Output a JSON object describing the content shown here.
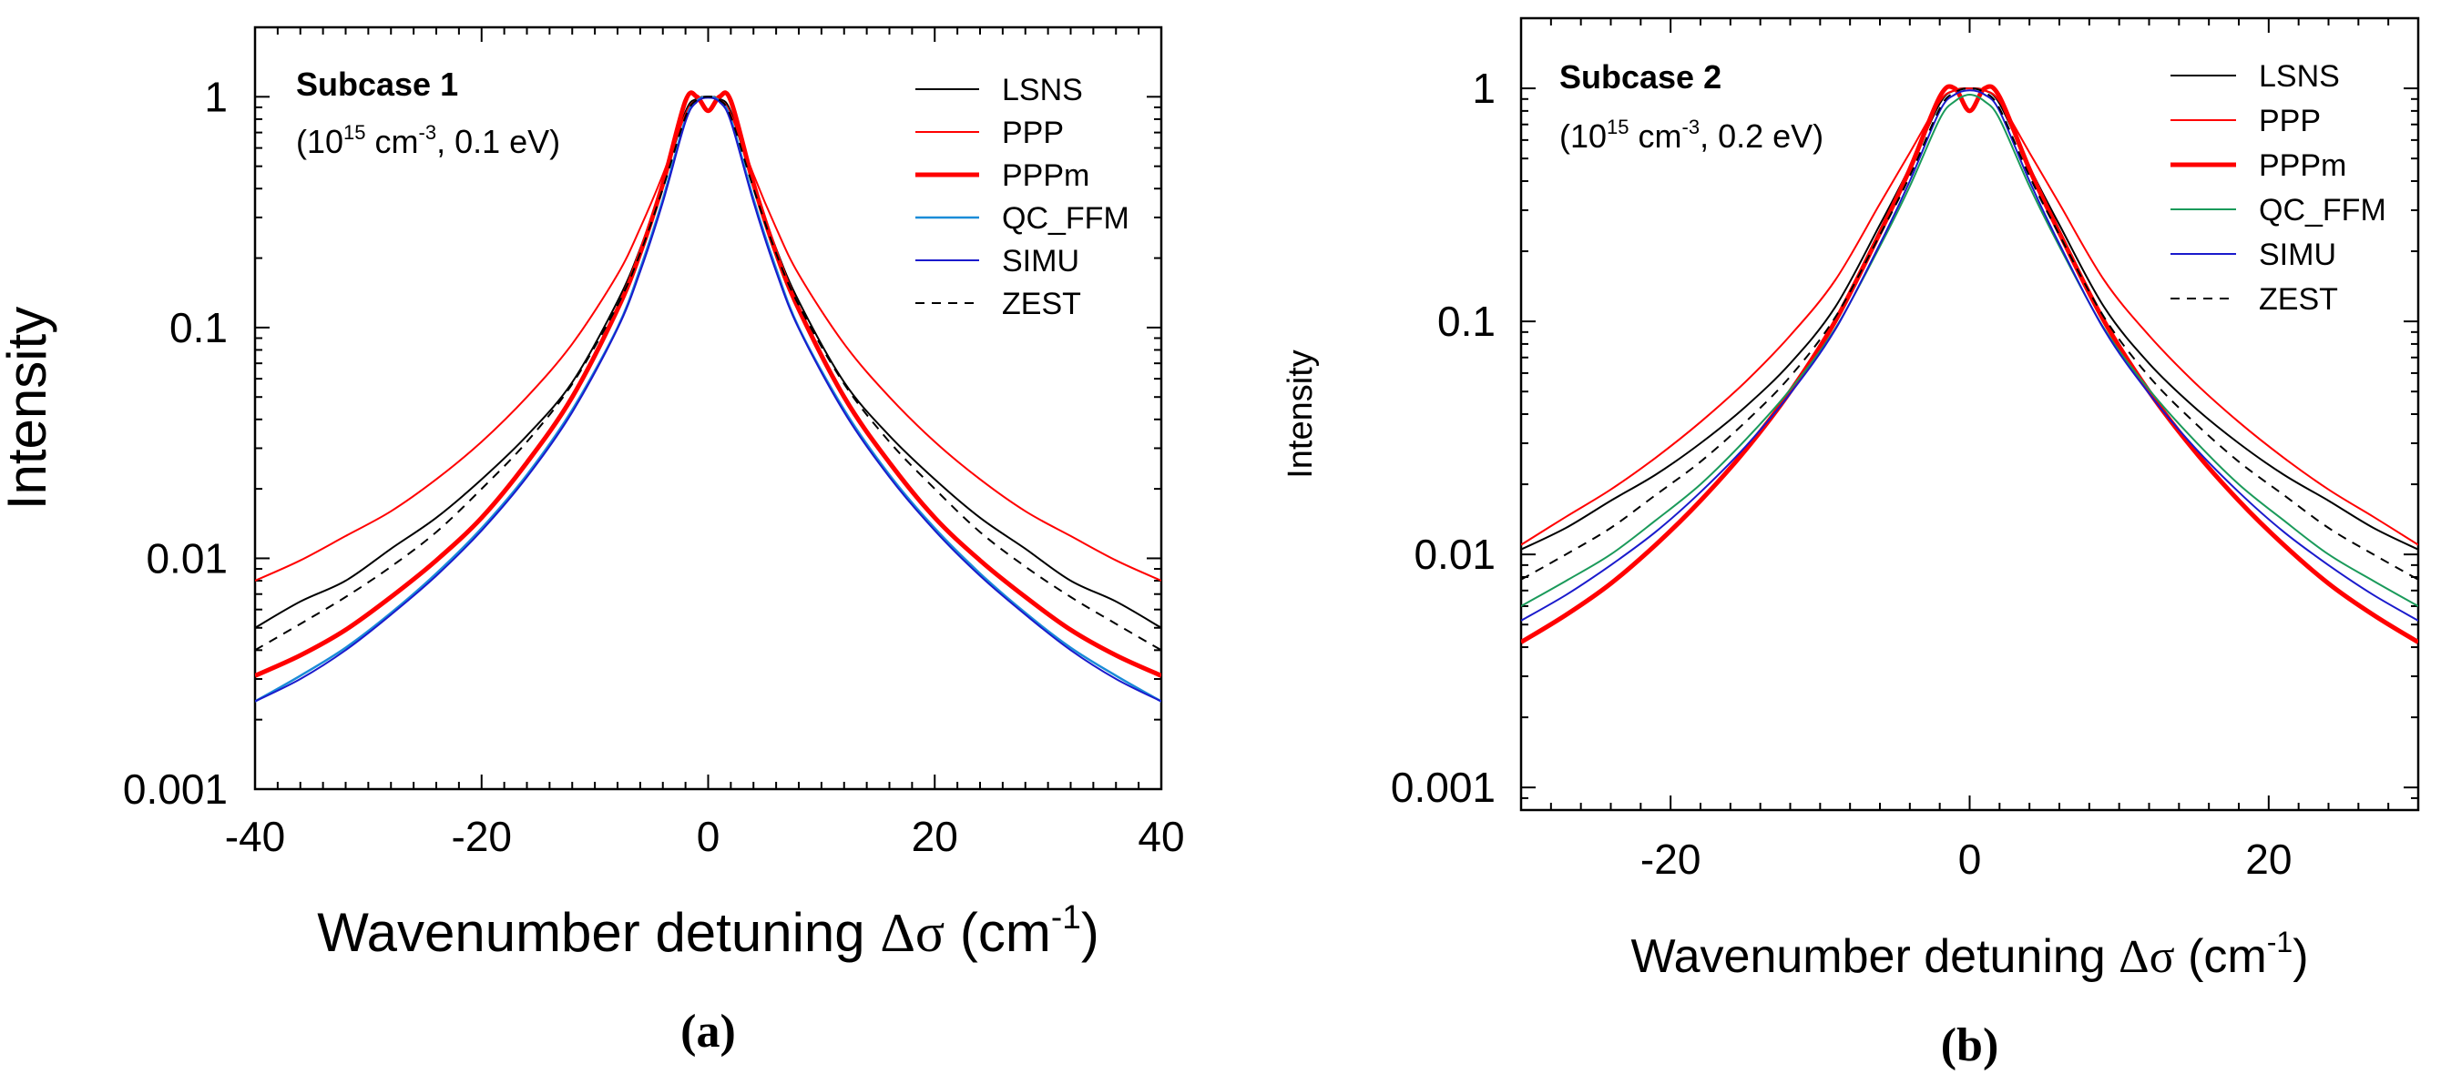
{
  "figure": {
    "panel_labels": [
      "(a)",
      "(b)"
    ]
  },
  "chart_data": [
    {
      "type": "line",
      "panel": "(a)",
      "title": "Subcase 1",
      "subtitle_parts": [
        "(10",
        "15",
        " cm",
        "-3",
        ", 0.1 eV)"
      ],
      "xlabel_parts": [
        "Wavenumber detuning ",
        "Δσ",
        " (cm",
        "-1",
        ")"
      ],
      "ylabel": "Intensity",
      "x_scale": "linear",
      "y_scale": "log",
      "xlim": [
        -40,
        40
      ],
      "ylim": [
        0.001,
        2
      ],
      "x_ticks": [
        -40,
        -20,
        0,
        20,
        40
      ],
      "x_tick_labels": [
        "-40",
        "-20",
        "0",
        "20",
        "40"
      ],
      "y_ticks": [
        0.001,
        0.01,
        0.1,
        1
      ],
      "y_tick_labels": [
        "0.001",
        "0.01",
        "0.1",
        "1"
      ],
      "legend_position": "top-right",
      "grid": false,
      "x": [
        -40,
        -36,
        -32,
        -28,
        -24,
        -20,
        -16,
        -12,
        -8,
        -6,
        -4,
        -2,
        -1,
        0,
        1,
        2,
        4,
        6,
        8,
        12,
        16,
        20,
        24,
        28,
        32,
        36,
        40
      ],
      "series": [
        {
          "name": "LSNS",
          "color": "#000000",
          "width": 2,
          "dash": "",
          "values": [
            0.005,
            0.0065,
            0.008,
            0.011,
            0.015,
            0.022,
            0.034,
            0.058,
            0.13,
            0.22,
            0.42,
            0.86,
            0.98,
            1.0,
            0.98,
            0.86,
            0.42,
            0.22,
            0.13,
            0.058,
            0.034,
            0.022,
            0.015,
            0.011,
            0.008,
            0.0065,
            0.005
          ]
        },
        {
          "name": "PPP",
          "color": "#ff0000",
          "width": 2,
          "dash": "",
          "values": [
            0.008,
            0.0098,
            0.0125,
            0.016,
            0.022,
            0.032,
            0.05,
            0.085,
            0.17,
            0.27,
            0.46,
            0.84,
            0.97,
            1.0,
            0.97,
            0.84,
            0.46,
            0.27,
            0.17,
            0.085,
            0.05,
            0.032,
            0.022,
            0.016,
            0.0125,
            0.0098,
            0.008
          ]
        },
        {
          "name": "PPPm",
          "color": "#ff0000",
          "width": 5,
          "dash": "",
          "values": [
            0.0031,
            0.0038,
            0.0049,
            0.0068,
            0.0098,
            0.015,
            0.026,
            0.05,
            0.12,
            0.21,
            0.42,
            0.96,
            1.0,
            0.87,
            1.0,
            0.96,
            0.42,
            0.21,
            0.12,
            0.05,
            0.026,
            0.015,
            0.0098,
            0.0068,
            0.0049,
            0.0038,
            0.0031
          ]
        },
        {
          "name": "QC_FFM",
          "color": "#1a8cd8",
          "width": 2.5,
          "dash": "",
          "values": [
            0.0024,
            0.0031,
            0.0041,
            0.0058,
            0.0086,
            0.0135,
            0.023,
            0.044,
            0.1,
            0.18,
            0.36,
            0.8,
            0.96,
            1.0,
            0.96,
            0.8,
            0.36,
            0.18,
            0.1,
            0.044,
            0.023,
            0.0135,
            0.0086,
            0.0058,
            0.0041,
            0.0031,
            0.0024
          ]
        },
        {
          "name": "SIMU",
          "color": "#1a1acc",
          "width": 2,
          "dash": "",
          "values": [
            0.0024,
            0.003,
            0.004,
            0.0057,
            0.0084,
            0.0132,
            0.0225,
            0.043,
            0.099,
            0.175,
            0.35,
            0.78,
            0.95,
            0.99,
            0.95,
            0.78,
            0.35,
            0.175,
            0.099,
            0.043,
            0.0225,
            0.0132,
            0.0084,
            0.0057,
            0.004,
            0.003,
            0.0024
          ]
        },
        {
          "name": "ZEST",
          "color": "#000000",
          "width": 2,
          "dash": "10,8",
          "values": [
            0.004,
            0.0052,
            0.0068,
            0.0092,
            0.013,
            0.02,
            0.032,
            0.057,
            0.125,
            0.21,
            0.4,
            0.82,
            0.97,
            1.0,
            0.97,
            0.82,
            0.4,
            0.21,
            0.125,
            0.057,
            0.032,
            0.02,
            0.013,
            0.0092,
            0.0068,
            0.0052,
            0.004
          ]
        }
      ]
    },
    {
      "type": "line",
      "panel": "(b)",
      "title": "Subcase 2",
      "subtitle_parts": [
        "(10",
        "15",
        " cm",
        "-3",
        ", 0.2 eV)"
      ],
      "xlabel_parts": [
        "Wavenumber detuning ",
        "Δσ",
        " (cm",
        "-1",
        ")"
      ],
      "ylabel": "Intensity",
      "x_scale": "linear",
      "y_scale": "log",
      "xlim": [
        -30,
        30
      ],
      "ylim": [
        0.0008,
        2
      ],
      "x_ticks": [
        -20,
        0,
        20
      ],
      "x_tick_labels": [
        "-20",
        "0",
        "20"
      ],
      "y_ticks": [
        0.001,
        0.01,
        0.1,
        1
      ],
      "y_tick_labels": [
        "0.001",
        "0.01",
        "0.1",
        "1"
      ],
      "legend_position": "top-right",
      "grid": false,
      "x": [
        -30,
        -27,
        -24,
        -21,
        -18,
        -15,
        -12,
        -9,
        -6,
        -4,
        -2,
        -1,
        0,
        1,
        2,
        4,
        6,
        9,
        12,
        15,
        18,
        21,
        24,
        27,
        30
      ],
      "series": [
        {
          "name": "LSNS",
          "color": "#000000",
          "width": 2,
          "dash": "",
          "values": [
            0.0105,
            0.013,
            0.017,
            0.022,
            0.03,
            0.043,
            0.066,
            0.115,
            0.26,
            0.46,
            0.86,
            0.98,
            1.0,
            0.98,
            0.86,
            0.46,
            0.26,
            0.115,
            0.066,
            0.043,
            0.03,
            0.022,
            0.017,
            0.013,
            0.0105
          ]
        },
        {
          "name": "PPP",
          "color": "#ff0000",
          "width": 2,
          "dash": "",
          "values": [
            0.011,
            0.0145,
            0.019,
            0.026,
            0.037,
            0.055,
            0.087,
            0.15,
            0.32,
            0.53,
            0.88,
            0.98,
            1.0,
            0.98,
            0.88,
            0.53,
            0.32,
            0.15,
            0.087,
            0.055,
            0.037,
            0.026,
            0.019,
            0.0145,
            0.011
          ]
        },
        {
          "name": "PPPm",
          "color": "#ff0000",
          "width": 5,
          "dash": "",
          "values": [
            0.0042,
            0.0055,
            0.0075,
            0.011,
            0.017,
            0.028,
            0.05,
            0.1,
            0.24,
            0.45,
            0.92,
            1.0,
            0.8,
            1.0,
            0.92,
            0.45,
            0.24,
            0.1,
            0.05,
            0.028,
            0.017,
            0.011,
            0.0075,
            0.0055,
            0.0042
          ]
        },
        {
          "name": "QC_FFM",
          "color": "#1a9a5a",
          "width": 2,
          "dash": "",
          "values": [
            0.006,
            0.0077,
            0.01,
            0.014,
            0.02,
            0.031,
            0.051,
            0.093,
            0.21,
            0.38,
            0.74,
            0.88,
            0.94,
            0.88,
            0.74,
            0.38,
            0.21,
            0.093,
            0.051,
            0.031,
            0.02,
            0.014,
            0.01,
            0.0077,
            0.006
          ]
        },
        {
          "name": "SIMU",
          "color": "#1a1acc",
          "width": 2,
          "dash": "",
          "values": [
            0.0052,
            0.0067,
            0.009,
            0.0125,
            0.0185,
            0.029,
            0.049,
            0.092,
            0.215,
            0.4,
            0.8,
            0.94,
            0.98,
            0.94,
            0.8,
            0.4,
            0.215,
            0.092,
            0.049,
            0.029,
            0.0185,
            0.0125,
            0.009,
            0.0067,
            0.0052
          ]
        },
        {
          "name": "ZEST",
          "color": "#000000",
          "width": 2,
          "dash": "10,8",
          "values": [
            0.0078,
            0.01,
            0.013,
            0.018,
            0.025,
            0.037,
            0.058,
            0.104,
            0.235,
            0.42,
            0.82,
            0.96,
            1.0,
            0.96,
            0.82,
            0.42,
            0.235,
            0.104,
            0.058,
            0.037,
            0.025,
            0.018,
            0.013,
            0.01,
            0.0078
          ]
        }
      ]
    }
  ]
}
